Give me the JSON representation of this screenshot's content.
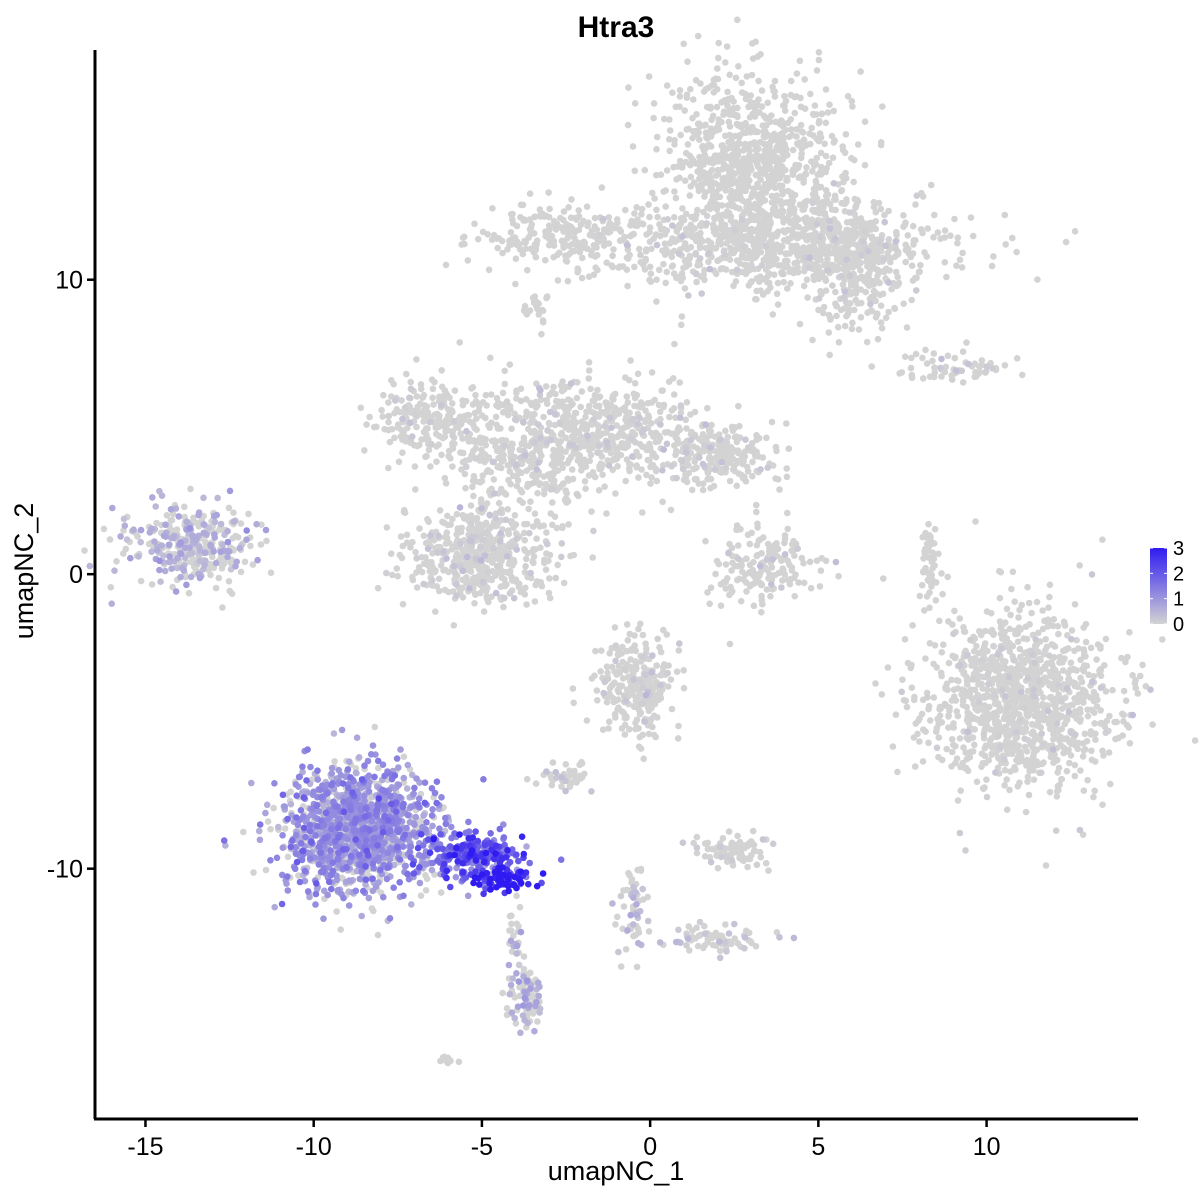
{
  "chart_data": {
    "type": "scatter",
    "title": "Htra3",
    "xlabel": "umapNC_1",
    "ylabel": "umapNC_2",
    "xlim": [
      -16.5,
      14.5
    ],
    "ylim": [
      -18.5,
      17.8
    ],
    "x_ticks": [
      -15,
      -10,
      -5,
      0,
      5,
      10
    ],
    "x_tick_labels": [
      "-15",
      "-10",
      "-5",
      "0",
      "5",
      "10"
    ],
    "y_ticks": [
      -10,
      0,
      10
    ],
    "y_tick_labels": [
      "-10",
      "0",
      "10"
    ],
    "grid": false,
    "legend": {
      "position": "right",
      "type": "colorbar",
      "min": 0,
      "max": 3,
      "ticks": [
        0,
        1,
        2,
        3
      ],
      "tick_labels": [
        "0",
        "1",
        "2",
        "3"
      ],
      "low_color": "#d3d3d3",
      "high_color": "#2f1bf2"
    },
    "clusters": [
      {
        "name": "",
        "cx": 2.9,
        "cy": 13.8,
        "sx": 1.6,
        "sy": 1.9,
        "n": 900,
        "expr": 0.0
      },
      {
        "name": "",
        "cx": 3.8,
        "cy": 11.2,
        "sx": 3.2,
        "sy": 0.9,
        "n": 700,
        "expr": 0.01
      },
      {
        "name": "",
        "cx": 6.1,
        "cy": 10.4,
        "sx": 1.0,
        "sy": 1.3,
        "n": 300,
        "expr": 0.02
      },
      {
        "name": "",
        "cx": -2.6,
        "cy": 11.5,
        "sx": 1.5,
        "sy": 0.6,
        "n": 200,
        "expr": 0.0
      },
      {
        "name": "",
        "cx": -3.4,
        "cy": 9.0,
        "sx": 0.3,
        "sy": 0.3,
        "n": 20,
        "expr": 0.0
      },
      {
        "name": "",
        "cx": 9.0,
        "cy": 7.0,
        "sx": 1.3,
        "sy": 0.3,
        "n": 60,
        "expr": 0.1
      },
      {
        "name": "",
        "cx": -6.5,
        "cy": 5.2,
        "sx": 1.0,
        "sy": 0.8,
        "n": 220,
        "expr": 0.03
      },
      {
        "name": "",
        "cx": -4.0,
        "cy": 4.2,
        "sx": 1.3,
        "sy": 1.4,
        "n": 320,
        "expr": 0.05
      },
      {
        "name": "",
        "cx": -1.4,
        "cy": 4.9,
        "sx": 1.5,
        "sy": 1.1,
        "n": 420,
        "expr": 0.04
      },
      {
        "name": "",
        "cx": 1.8,
        "cy": 4.0,
        "sx": 1.2,
        "sy": 0.7,
        "n": 260,
        "expr": 0.05
      },
      {
        "name": "",
        "cx": -5.1,
        "cy": 0.6,
        "sx": 1.3,
        "sy": 0.9,
        "n": 480,
        "expr": 0.1
      },
      {
        "name": "",
        "cx": -13.6,
        "cy": 1.0,
        "sx": 1.2,
        "sy": 0.8,
        "n": 340,
        "expr": 0.55
      },
      {
        "name": "",
        "cx": 3.3,
        "cy": 0.3,
        "sx": 0.9,
        "sy": 0.8,
        "n": 170,
        "expr": 0.05
      },
      {
        "name": "",
        "cx": 8.3,
        "cy": 0.4,
        "sx": 0.15,
        "sy": 0.9,
        "n": 50,
        "expr": 0.0
      },
      {
        "name": "",
        "cx": 11.0,
        "cy": -4.3,
        "sx": 1.7,
        "sy": 1.8,
        "n": 1100,
        "expr": 0.01
      },
      {
        "name": "",
        "cx": -0.4,
        "cy": -3.8,
        "sx": 0.7,
        "sy": 1.0,
        "n": 280,
        "expr": 0.04
      },
      {
        "name": "",
        "cx": -2.5,
        "cy": -6.9,
        "sx": 0.4,
        "sy": 0.3,
        "n": 40,
        "expr": 0.1
      },
      {
        "name": "",
        "cx": 2.5,
        "cy": -9.4,
        "sx": 0.6,
        "sy": 0.35,
        "n": 90,
        "expr": 0.08
      },
      {
        "name": "",
        "cx": -8.7,
        "cy": -8.6,
        "sx": 1.3,
        "sy": 1.3,
        "n": 1300,
        "expr": 1.0
      },
      {
        "name": "",
        "cx": -5.3,
        "cy": -9.5,
        "sx": 0.9,
        "sy": 0.5,
        "n": 260,
        "expr": 1.8
      },
      {
        "name": "",
        "cx": -4.3,
        "cy": -10.4,
        "sx": 0.4,
        "sy": 0.22,
        "n": 70,
        "expr": 2.8
      },
      {
        "name": "",
        "cx": -3.7,
        "cy": -14.4,
        "sx": 0.3,
        "sy": 0.6,
        "n": 80,
        "expr": 0.6
      },
      {
        "name": "",
        "cx": -4.0,
        "cy": -12.3,
        "sx": 0.15,
        "sy": 0.7,
        "n": 30,
        "expr": 0.6
      },
      {
        "name": "",
        "cx": -0.5,
        "cy": -11.3,
        "sx": 0.25,
        "sy": 0.9,
        "n": 60,
        "expr": 0.4
      },
      {
        "name": "",
        "cx": 1.9,
        "cy": -12.4,
        "sx": 0.9,
        "sy": 0.3,
        "n": 70,
        "expr": 0.3
      },
      {
        "name": "",
        "cx": -6.0,
        "cy": -16.5,
        "sx": 0.2,
        "sy": 0.1,
        "n": 12,
        "expr": 0.0
      }
    ]
  }
}
